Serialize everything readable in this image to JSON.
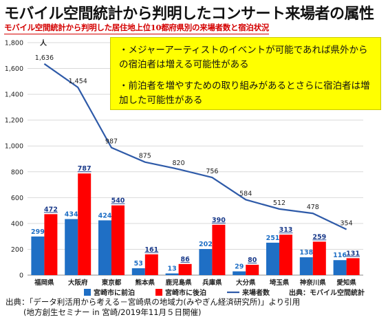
{
  "header": {
    "title": "モバイル空間統計から判明したコンサート来場者の属性",
    "subtitle": "モバイル空間統計から判明した居住地上位10都府県別の来場者数と宿泊状況"
  },
  "callout": {
    "line1": "・メジャーアーティストのイベントが可能であれば県外からの宿泊者は増える可能性がある",
    "line2": "・前泊者を増やすための取り組みがあるとさらに宿泊者は増加した可能性がある"
  },
  "source_note": "出典：モバイル空間統計",
  "footer": {
    "line1": "出典：「データ利活用から考える－宮崎県の地域力(みやぎん経済研究所)」より引用",
    "line2": "(地方創生セミナー in 宮崎/2019年11月５日開催)"
  },
  "colors": {
    "pre": "#1f6fc5",
    "post": "#ff0000",
    "line": "#2e5aa8"
  },
  "chart_data": {
    "type": "bar",
    "ylabel": "人",
    "ylim": [
      0,
      1800
    ],
    "yticks": [
      0,
      200,
      400,
      600,
      800,
      1000,
      1200,
      1400,
      1600,
      1800
    ],
    "grid": true,
    "legend_position": "bottom",
    "categories": [
      "福岡県",
      "大阪府",
      "東京都",
      "熊本県",
      "鹿児島県",
      "兵庫県",
      "大分県",
      "埼玉県",
      "神奈川県",
      "愛知県"
    ],
    "series": [
      {
        "name": "宮崎市に前泊",
        "type": "bar",
        "values": [
          299,
          434,
          424,
          53,
          13,
          202,
          29,
          251,
          138,
          116
        ]
      },
      {
        "name": "宮崎市に後泊",
        "type": "bar",
        "values": [
          472,
          787,
          540,
          161,
          86,
          390,
          80,
          313,
          259,
          131
        ]
      },
      {
        "name": "来場者数",
        "type": "line",
        "values": [
          1636,
          1454,
          987,
          875,
          820,
          756,
          584,
          512,
          478,
          354
        ]
      }
    ]
  }
}
